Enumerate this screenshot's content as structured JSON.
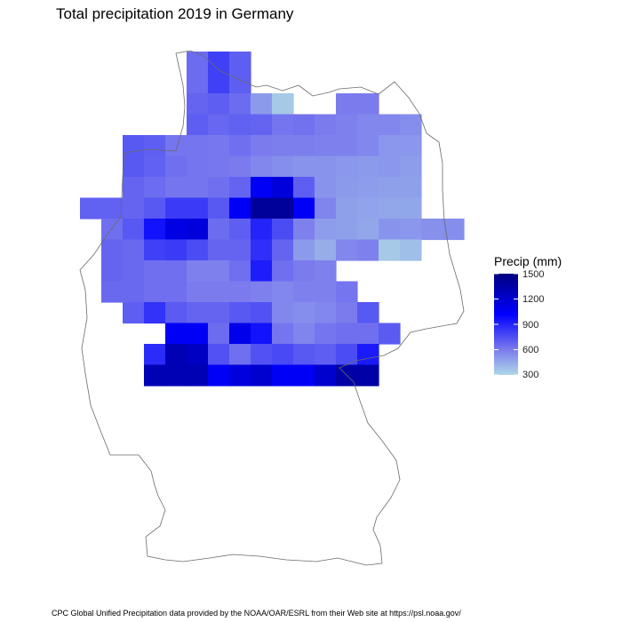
{
  "title": "Total precipitation 2019 in Germany",
  "caption": "CPC Global Unified Precipitation data provided by the NOAA/OAR/ESRL from their Web site at https://psl.noaa.gov/",
  "legend": {
    "title": "Precip (mm)",
    "ticks": [
      "1500",
      "1200",
      "900",
      "600",
      "300"
    ]
  },
  "colors": {
    "high": "#00007f",
    "mid": "#0000ff",
    "lowmid": "#7b7bee",
    "low": "#add8e6",
    "border": "#6b6b6b"
  },
  "chart_data": {
    "type": "heatmap",
    "scale": {
      "min": 300,
      "max": 1500,
      "ticks": [
        300,
        600,
        900,
        1200,
        1500
      ]
    },
    "rows": [
      [
        null,
        null,
        null,
        null,
        null,
        650,
        800,
        700,
        null,
        null,
        null,
        null,
        null,
        null,
        null,
        null,
        null,
        null
      ],
      [
        null,
        null,
        null,
        null,
        null,
        650,
        800,
        700,
        null,
        null,
        null,
        null,
        null,
        null,
        null,
        null,
        null,
        null
      ],
      [
        null,
        null,
        null,
        null,
        null,
        680,
        700,
        650,
        500,
        350,
        null,
        null,
        600,
        600,
        null,
        null,
        null,
        null
      ],
      [
        null,
        null,
        null,
        null,
        null,
        700,
        670,
        690,
        680,
        620,
        630,
        600,
        580,
        560,
        560,
        540,
        null,
        null
      ],
      [
        null,
        null,
        720,
        700,
        620,
        620,
        610,
        640,
        600,
        590,
        590,
        580,
        580,
        560,
        510,
        510,
        null,
        null
      ],
      [
        null,
        null,
        720,
        690,
        640,
        620,
        610,
        600,
        560,
        540,
        520,
        520,
        510,
        500,
        510,
        490,
        null,
        null
      ],
      [
        null,
        null,
        680,
        650,
        620,
        620,
        640,
        680,
        1050,
        1150,
        700,
        520,
        500,
        490,
        480,
        480,
        null,
        null
      ],
      [
        690,
        690,
        680,
        720,
        820,
        820,
        720,
        1050,
        1400,
        1400,
        1050,
        570,
        480,
        470,
        460,
        460,
        null,
        null
      ],
      [
        null,
        640,
        720,
        960,
        1120,
        1150,
        650,
        700,
        900,
        760,
        580,
        490,
        480,
        460,
        520,
        510,
        530,
        540
      ],
      [
        null,
        680,
        660,
        800,
        820,
        760,
        680,
        680,
        860,
        680,
        500,
        440,
        560,
        580,
        350,
        380,
        null,
        null
      ],
      [
        null,
        680,
        660,
        640,
        640,
        580,
        580,
        640,
        920,
        640,
        600,
        580,
        null,
        null,
        null,
        null,
        null,
        null
      ],
      [
        null,
        660,
        660,
        640,
        640,
        600,
        600,
        600,
        580,
        560,
        580,
        580,
        620,
        null,
        null,
        null,
        null,
        null
      ],
      [
        null,
        null,
        700,
        850,
        710,
        680,
        680,
        720,
        740,
        560,
        540,
        560,
        600,
        720,
        null,
        null,
        null,
        null
      ],
      [
        null,
        null,
        null,
        null,
        1050,
        1050,
        650,
        1100,
        960,
        620,
        570,
        620,
        640,
        640,
        710,
        null,
        null,
        null
      ],
      [
        null,
        null,
        null,
        870,
        1300,
        1250,
        740,
        640,
        740,
        770,
        720,
        700,
        760,
        930,
        null,
        null,
        null,
        null
      ],
      [
        null,
        null,
        null,
        1300,
        1300,
        1300,
        1050,
        1150,
        1200,
        1050,
        1050,
        1200,
        1350,
        1350,
        null,
        null,
        null,
        null
      ]
    ]
  }
}
